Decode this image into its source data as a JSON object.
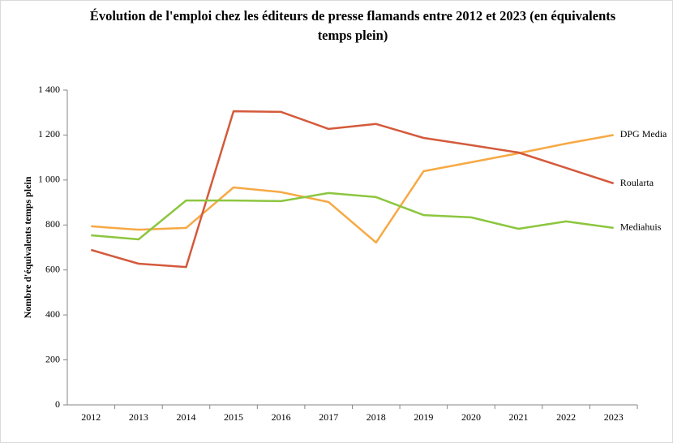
{
  "chart_data": {
    "type": "line",
    "title": "Évolution de l'emploi chez les éditeurs de presse flamands entre 2012 et 2023 (en équivalents temps plein)",
    "ylabel": "Nombre d'équivalents temps plein",
    "categories": [
      "2012",
      "2013",
      "2014",
      "2015",
      "2016",
      "2017",
      "2018",
      "2019",
      "2020",
      "2021",
      "2022",
      "2023"
    ],
    "series": [
      {
        "name": "DPG Media",
        "color": "#f7a944",
        "values": [
          794,
          779,
          787,
          967,
          946,
          902,
          722,
          1039,
          1079,
          1119,
          1162,
          1200
        ]
      },
      {
        "name": "Roularta",
        "color": "#d45a3c",
        "values": [
          689,
          628,
          613,
          1306,
          1303,
          1227,
          1249,
          1187,
          1155,
          1122,
          1054,
          985
        ]
      },
      {
        "name": "Mediahuis",
        "color": "#8cc63f",
        "values": [
          754,
          736,
          909,
          909,
          906,
          942,
          924,
          844,
          834,
          783,
          816,
          787
        ]
      }
    ],
    "ylim": [
      0,
      1400
    ],
    "yticks": [
      0,
      200,
      400,
      600,
      800,
      {
        "value": 1000,
        "label": "1 000"
      },
      {
        "value": 1200,
        "label": "1 200"
      },
      {
        "value": 1400,
        "label": "1 400"
      }
    ],
    "grid": false
  }
}
